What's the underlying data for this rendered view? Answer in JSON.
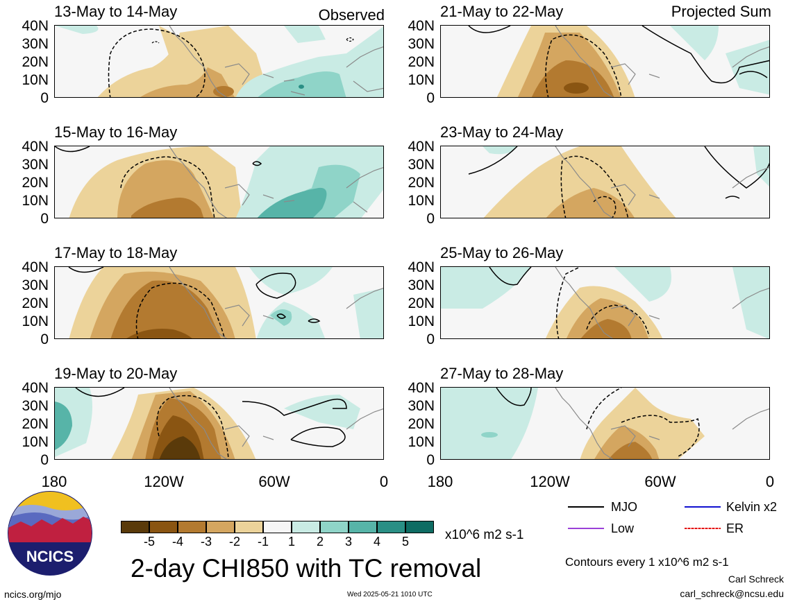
{
  "header": {
    "left_label": "Observed",
    "right_label": "Projected Sum"
  },
  "panels_left": [
    {
      "title": "13-May to 14-May"
    },
    {
      "title": "15-May to 16-May"
    },
    {
      "title": "17-May to 18-May"
    },
    {
      "title": "19-May to 20-May"
    }
  ],
  "panels_right": [
    {
      "title": "21-May to 22-May"
    },
    {
      "title": "23-May to 24-May"
    },
    {
      "title": "25-May to 26-May"
    },
    {
      "title": "27-May to 28-May"
    }
  ],
  "lat_ticks": [
    "40N",
    "30N",
    "20N",
    "10N",
    "0"
  ],
  "lon_ticks": [
    "180",
    "120W",
    "60W",
    "0"
  ],
  "colorbar": {
    "colors": [
      "#5a3a0a",
      "#8a5512",
      "#b37a30",
      "#d4a660",
      "#ecd39a",
      "#f6f6f6",
      "#c9ebe4",
      "#8fd4c8",
      "#57b4a8",
      "#2a8f85",
      "#0e6c63",
      "#0a4a40"
    ],
    "tick_labels": [
      "-5",
      "-4",
      "-3",
      "-2",
      "-1",
      "1",
      "2",
      "3",
      "4",
      "5"
    ],
    "units": "x10^6 m2 s-1"
  },
  "main_title": "2-day CHI850 with TC removal",
  "legend": [
    {
      "label": "MJO",
      "color": "#000000"
    },
    {
      "label": "Kelvin x2",
      "color": "#1010d0"
    },
    {
      "label": "Low",
      "color": "#9a40d8"
    },
    {
      "label": "ER",
      "color": "#e01010"
    }
  ],
  "contour_note": "Contours every 1 x10^6 m2 s-1",
  "author": "Carl Schreck",
  "email": "carl_schreck@ncsu.edu",
  "footer_left": "ncics.org/mjo",
  "timestamp": "Wed 2025-05-21 1010 UTC",
  "logo_text": "NCICS"
}
